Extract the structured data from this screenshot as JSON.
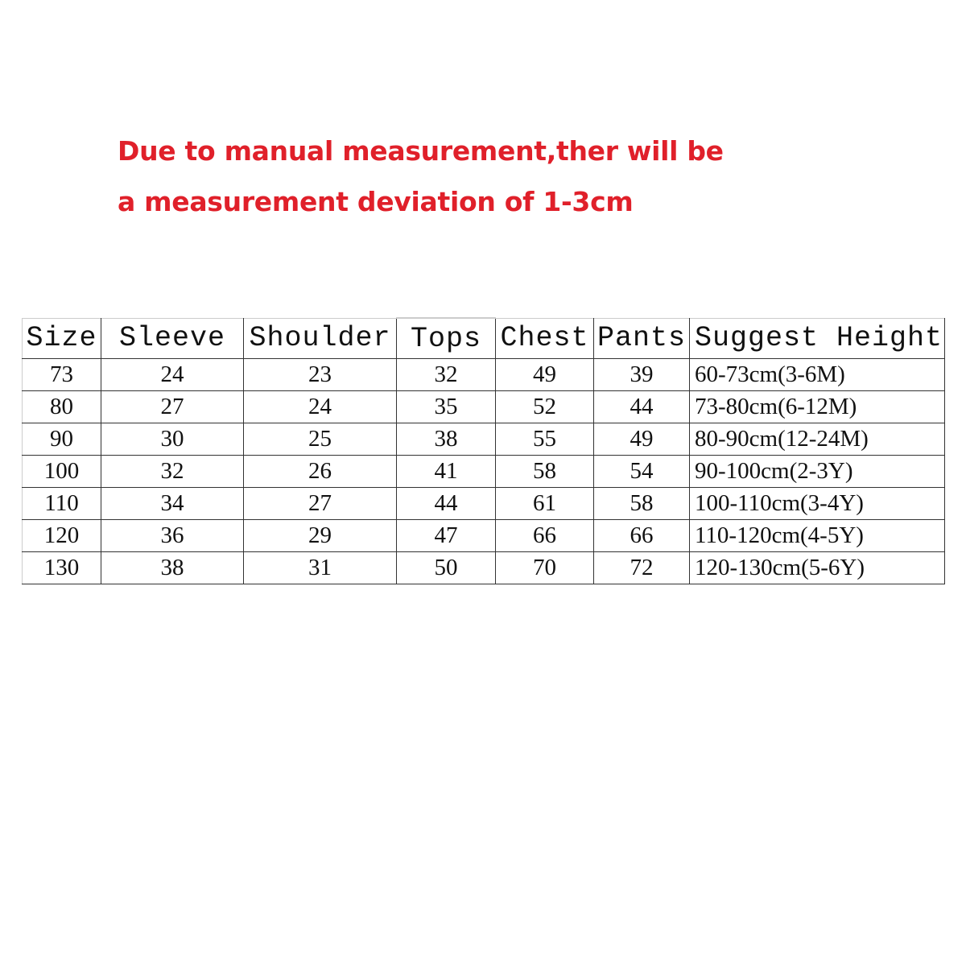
{
  "notice": {
    "line1": "Due to manual measurement,ther will be",
    "line2": "a measurement deviation of 1-3cm",
    "color": "#e0202a"
  },
  "table": {
    "headers": [
      "Size",
      "Sleeve",
      "Shoulder",
      "Tops",
      "Chest",
      "Pants",
      "Suggest Height"
    ],
    "rows": [
      [
        "73",
        "24",
        "23",
        "32",
        "49",
        "39",
        "60-73cm(3-6M)"
      ],
      [
        "80",
        "27",
        "24",
        "35",
        "52",
        "44",
        "73-80cm(6-12M)"
      ],
      [
        "90",
        "30",
        "25",
        "38",
        "55",
        "49",
        "80-90cm(12-24M)"
      ],
      [
        "100",
        "32",
        "26",
        "41",
        "58",
        "54",
        "90-100cm(2-3Y)"
      ],
      [
        "110",
        "34",
        "27",
        "44",
        "61",
        "58",
        "100-110cm(3-4Y)"
      ],
      [
        "120",
        "36",
        "29",
        "47",
        "66",
        "66",
        "110-120cm(4-5Y)"
      ],
      [
        "130",
        "38",
        "31",
        "50",
        "70",
        "72",
        "120-130cm(5-6Y)"
      ]
    ]
  }
}
